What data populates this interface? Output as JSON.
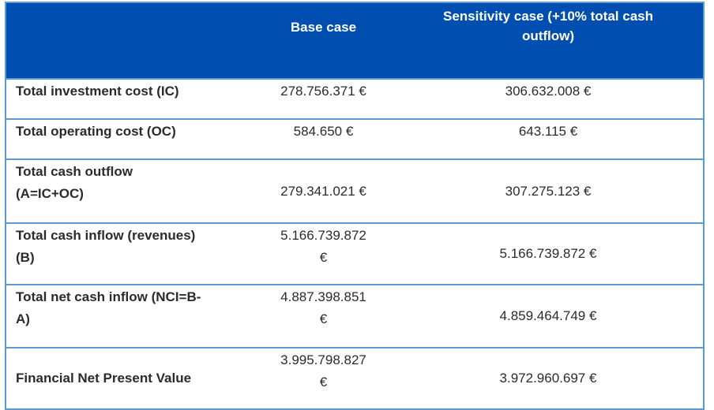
{
  "header": {
    "col0": "",
    "col1": "Base case",
    "col2": "Sensitivity case (+10% total cash\noutflow)"
  },
  "rows": [
    {
      "label": "Total investment cost (IC)",
      "base": "278.756.371 €",
      "sensitivity": "306.632.008 €"
    },
    {
      "label": "Total operating cost (OC)",
      "base": "584.650 €",
      "sensitivity": "643.115 €"
    },
    {
      "label": "Total cash outflow\n(A=IC+OC)",
      "base": "279.341.021 €",
      "sensitivity": "307.275.123 €"
    },
    {
      "label": "Total cash inflow (revenues)\n(B)",
      "base": "5.166.739.872\n€",
      "sensitivity": "5.166.739.872 €"
    },
    {
      "label": "Total net cash inflow (NCI=B-\nA)",
      "base": "4.887.398.851\n€",
      "sensitivity": "4.859.464.749 €"
    },
    {
      "label": "Financial Net Present Value",
      "base": "3.995.798.827\n€",
      "sensitivity": "3.972.960.697 €"
    }
  ],
  "colors": {
    "header_bg": "#004fb0",
    "border": "#5b9bd5"
  }
}
